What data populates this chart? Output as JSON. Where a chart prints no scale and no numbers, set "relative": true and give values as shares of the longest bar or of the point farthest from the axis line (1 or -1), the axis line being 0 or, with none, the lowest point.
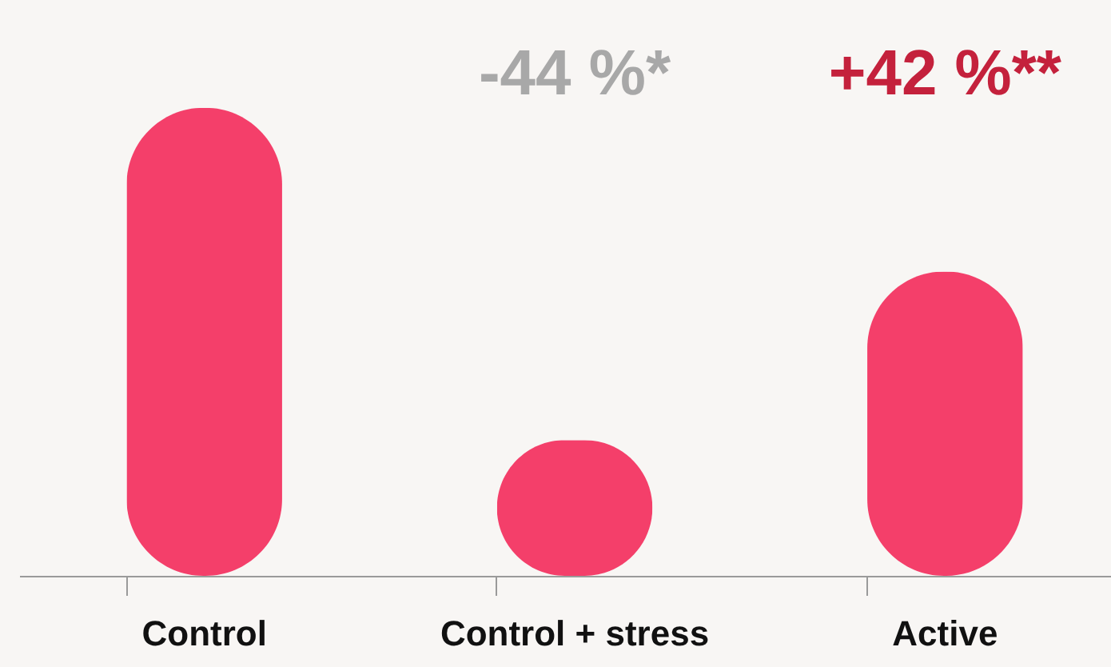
{
  "chart_data": {
    "type": "bar",
    "relative": true,
    "categories": [
      "Control",
      "Control + stress",
      "Active"
    ],
    "values": [
      1,
      0.29,
      0.65
    ],
    "color": "#f43f6a",
    "annotations": [
      "-44 %*",
      "+42 %**"
    ]
  }
}
